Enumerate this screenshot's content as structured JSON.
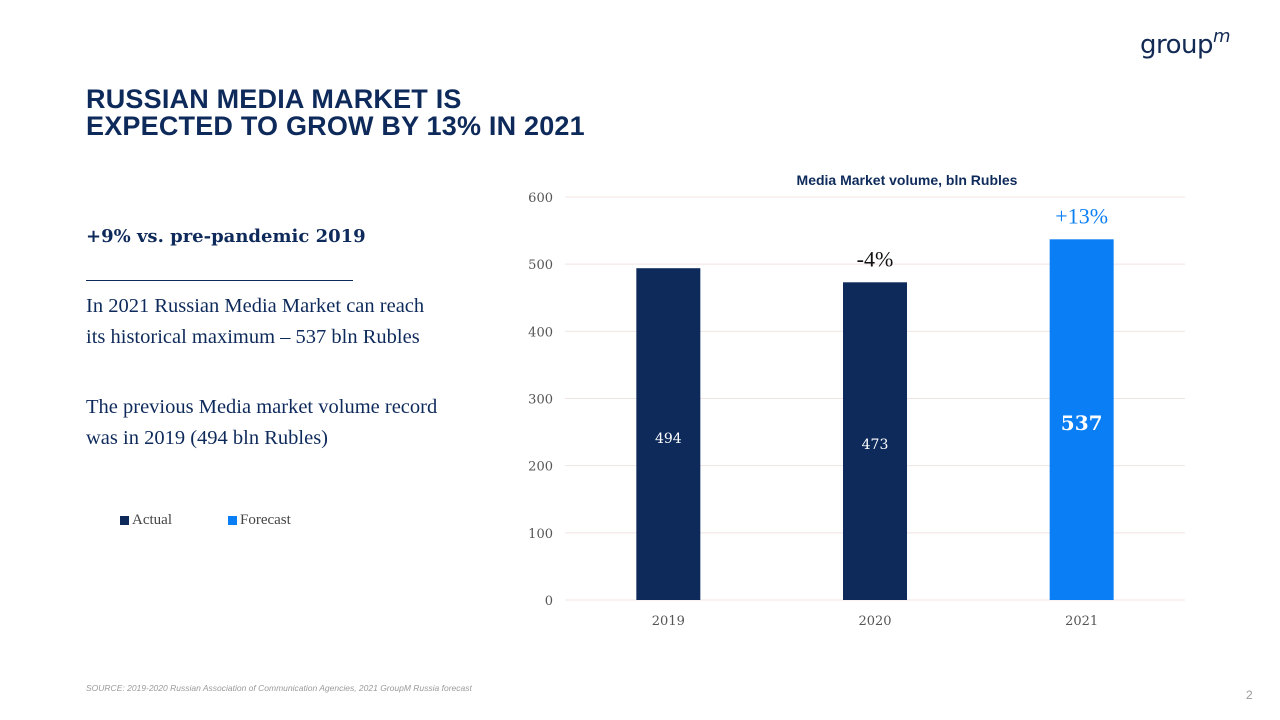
{
  "logo": {
    "text": "group",
    "superscript": "m"
  },
  "title": {
    "line1": "RUSSIAN MEDIA MARKET IS",
    "line2": "EXPECTED TO GROW BY 13% IN 2021"
  },
  "left_panel": {
    "subhead": "+9% vs. pre-pandemic 2019",
    "paragraph1": "In 2021 Russian Media Market can reach its historical maximum – 537 bln Rubles",
    "paragraph2": "The previous Media market volume record was in 2019  (494 bln Rubles)"
  },
  "legend": [
    {
      "label": "Actual",
      "color": "#0e2a5b"
    },
    {
      "label": "Forecast",
      "color": "#0a7ff5"
    }
  ],
  "footer": {
    "source": "SOURCE: 2019-2020 Russian Association of Communication  Agencies, 2021 GroupM Russia forecast",
    "page_number": "2"
  },
  "chart_data": {
    "type": "bar",
    "title": "Media Market volume, bln Rubles",
    "xlabel": "",
    "ylabel": "",
    "categories": [
      "2019",
      "2020",
      "2021"
    ],
    "values": [
      494,
      473,
      537
    ],
    "value_labels": [
      "494",
      "473",
      "537"
    ],
    "series_type": [
      "Actual",
      "Actual",
      "Forecast"
    ],
    "colors": {
      "Actual": "#0e2a5b",
      "Forecast": "#0a7ff5"
    },
    "annotations": [
      {
        "category": "2020",
        "text": "-4%",
        "color": "#111111"
      },
      {
        "category": "2021",
        "text": "+13%",
        "color": "#0a7ff5"
      }
    ],
    "ylim": [
      0,
      600
    ],
    "yticks": [
      0,
      100,
      200,
      300,
      400,
      500,
      600
    ],
    "grid": true,
    "legend_position": "bottom-left"
  }
}
